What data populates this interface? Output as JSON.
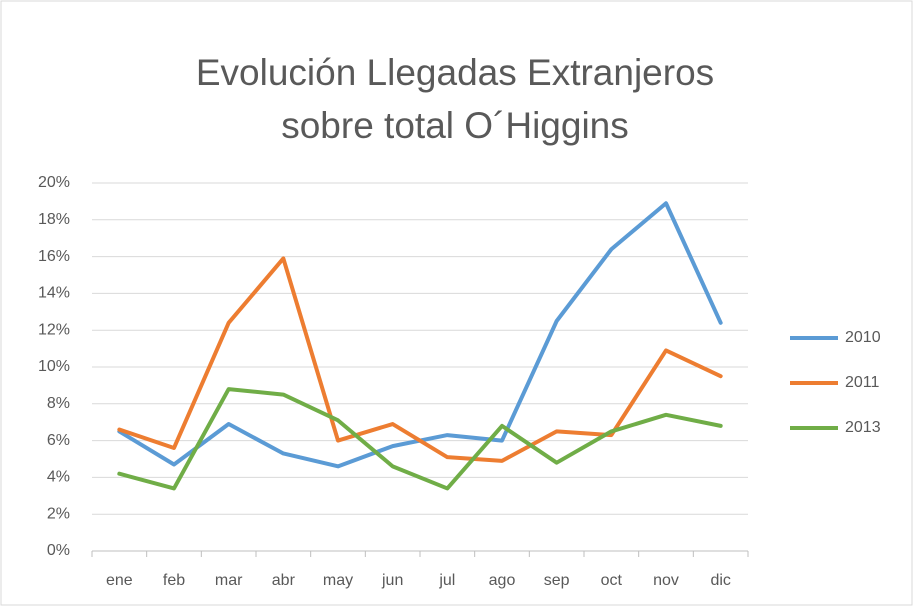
{
  "chart_data": {
    "type": "line",
    "title": [
      "Evolución Llegadas Extranjeros",
      "sobre total O´Higgins"
    ],
    "categories": [
      "ene",
      "feb",
      "mar",
      "abr",
      "may",
      "jun",
      "jul",
      "ago",
      "sep",
      "oct",
      "nov",
      "dic"
    ],
    "series": [
      {
        "name": "2010",
        "color": "#5b9bd5",
        "values": [
          6.5,
          4.7,
          6.9,
          5.3,
          4.6,
          5.7,
          6.3,
          6.0,
          12.5,
          16.4,
          18.9,
          12.4
        ]
      },
      {
        "name": "2011",
        "color": "#ed7d31",
        "values": [
          6.6,
          5.6,
          12.4,
          15.9,
          6.0,
          6.9,
          5.1,
          4.9,
          6.5,
          6.3,
          10.9,
          9.5
        ]
      },
      {
        "name": "2013",
        "color": "#70ad47",
        "values": [
          4.2,
          3.4,
          8.8,
          8.5,
          7.1,
          4.6,
          3.4,
          6.8,
          4.8,
          6.5,
          7.4,
          6.8
        ]
      }
    ],
    "ylim": [
      0,
      20
    ],
    "yticks": [
      {
        "value": 0,
        "label": "0%"
      },
      {
        "value": 2,
        "label": "2%"
      },
      {
        "value": 4,
        "label": "4%"
      },
      {
        "value": 6,
        "label": "6%"
      },
      {
        "value": 8,
        "label": "8%"
      },
      {
        "value": 10,
        "label": "10%"
      },
      {
        "value": 12,
        "label": "12%"
      },
      {
        "value": 14,
        "label": "14%"
      },
      {
        "value": 16,
        "label": "16%"
      },
      {
        "value": 18,
        "label": "18%"
      },
      {
        "value": 20,
        "label": "20%"
      }
    ],
    "grid": true,
    "legend": "right"
  }
}
